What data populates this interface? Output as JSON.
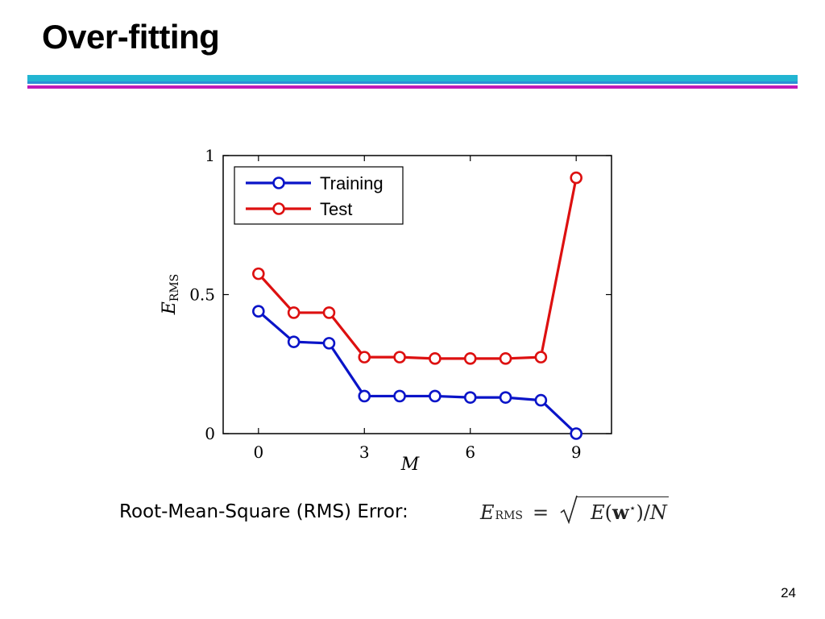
{
  "slide": {
    "title": "Over-fitting",
    "caption": "Root-Mean-Square (RMS) Error:",
    "formula": {
      "lhs": "E",
      "lhs_sub": "RMS",
      "equals": "=",
      "radicand": "E(w*)/N"
    },
    "page_number": "24"
  },
  "chart_data": {
    "type": "line",
    "xlabel": "M",
    "ylabel": "E",
    "ylabel_sub": "RMS",
    "xlim": [
      -1,
      10
    ],
    "ylim": [
      0,
      1
    ],
    "x_ticks": [
      0,
      3,
      6,
      9
    ],
    "x_tick_labels": [
      "0",
      "3",
      "6",
      "9"
    ],
    "y_ticks": [
      0,
      0.5,
      1
    ],
    "y_tick_labels": [
      "0",
      "0.5",
      "1"
    ],
    "grid": false,
    "legend_position": "top-left",
    "x": [
      0,
      1,
      2,
      3,
      4,
      5,
      6,
      7,
      8,
      9
    ],
    "series": [
      {
        "name": "Training",
        "color": "#0a14c8",
        "values": [
          0.44,
          0.33,
          0.325,
          0.135,
          0.135,
          0.135,
          0.13,
          0.13,
          0.12,
          0.0
        ]
      },
      {
        "name": "Test",
        "color": "#dd1010",
        "values": [
          0.575,
          0.435,
          0.435,
          0.275,
          0.275,
          0.27,
          0.27,
          0.27,
          0.275,
          0.92
        ]
      }
    ]
  }
}
